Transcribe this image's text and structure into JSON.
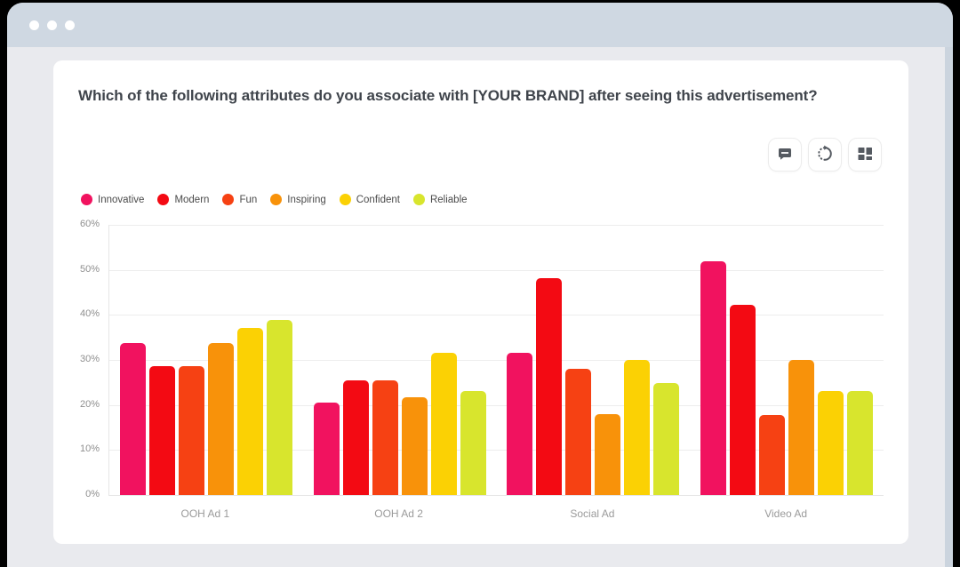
{
  "card": {
    "title": "Which of the following attributes do you associate with [YOUR BRAND] after seeing this advertisement?"
  },
  "toolbar": {
    "buttons": [
      {
        "icon": "comment-icon"
      },
      {
        "icon": "refresh-icon"
      },
      {
        "icon": "grid-layout-icon"
      }
    ]
  },
  "colors": {
    "titlebar": "#CFD8E2",
    "window_background": "#E9EAEE",
    "scrollbar": "#CBD4DE",
    "card_background": "#FFFFFF",
    "icon": "#555A61"
  },
  "chart_data": {
    "type": "bar",
    "title": "Which of the following attributes do you associate with [YOUR BRAND] after seeing this advertisement?",
    "categories": [
      "OOH Ad 1",
      "OOH Ad 2",
      "Social Ad",
      "Video Ad"
    ],
    "series": [
      {
        "name": "Innovative",
        "color": "#F1125F",
        "values": [
          33.8,
          20.5,
          31.5,
          52.0
        ]
      },
      {
        "name": "Modern",
        "color": "#F30A13",
        "values": [
          28.6,
          25.5,
          48.2,
          42.2
        ]
      },
      {
        "name": "Fun",
        "color": "#F64113",
        "values": [
          28.6,
          25.5,
          28.1,
          17.7
        ]
      },
      {
        "name": "Inspiring",
        "color": "#F8920A",
        "values": [
          33.8,
          21.7,
          18.0,
          30.0
        ]
      },
      {
        "name": "Confident",
        "color": "#FBD104",
        "values": [
          37.2,
          31.5,
          30.0,
          23.1
        ]
      },
      {
        "name": "Reliable",
        "color": "#D8E52D",
        "values": [
          38.8,
          23.0,
          24.8,
          23.1
        ]
      }
    ],
    "xlabel": "",
    "ylabel": "",
    "ylim": [
      0,
      60
    ],
    "ytick_values": [
      0,
      10,
      20,
      30,
      40,
      50,
      60
    ],
    "ytick_labels": [
      "0%",
      "10%",
      "20%",
      "30%",
      "40%",
      "50%",
      "60%"
    ],
    "grid": true,
    "legend_position": "top-left"
  }
}
